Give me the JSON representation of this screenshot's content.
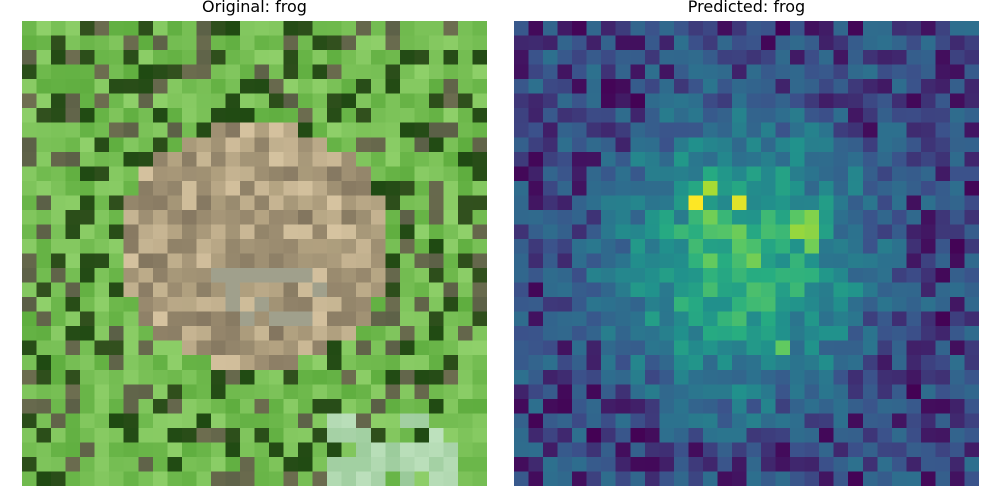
{
  "panels": [
    {
      "title": "Original: frog",
      "image": "Pixelated photo of a frog among green leaves"
    },
    {
      "title": "Predicted: frog",
      "image": "Saliency heatmap (viridis colormap)"
    }
  ],
  "colors": {
    "leaf_light": "#8fd06a",
    "leaf_mid": "#5fae3f",
    "leaf_dark": "#1f4a12",
    "frog_light": "#d6c3a0",
    "frog_mid": "#b0a07f",
    "frog_dark": "#6f6351",
    "viridis_low": "#440154",
    "viridis_mid": "#2f6d8e",
    "viridis_teal": "#21a08c",
    "viridis_high": "#fde725"
  }
}
